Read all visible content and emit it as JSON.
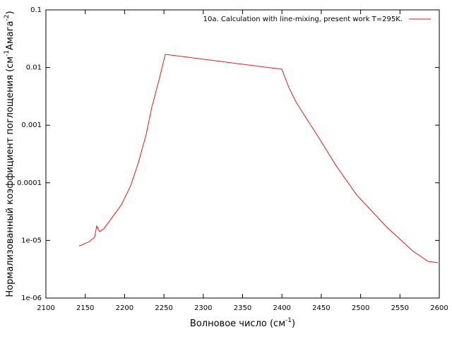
{
  "chart_data": {
    "type": "line",
    "xlabel": [
      "Волновое число (см",
      "-1",
      ")"
    ],
    "ylabel": [
      "Нормализованный коэффициент поглощения (см",
      "-1",
      "Амага",
      "-2",
      ")"
    ],
    "xlim": [
      2100,
      2600
    ],
    "xticks": [
      2100,
      2150,
      2200,
      2250,
      2300,
      2350,
      2400,
      2450,
      2500,
      2550,
      2600
    ],
    "ylim": [
      1e-06,
      0.1
    ],
    "ylog": true,
    "yticks": [
      {
        "value": 1e-06,
        "label": "1e-06"
      },
      {
        "value": 1e-05,
        "label": "1e-05"
      },
      0.0001,
      0.001,
      0.01,
      0.1
    ],
    "grid": false,
    "legend": "top-right",
    "series": [
      {
        "name": "10a. Calculation with line-mixing, present work T=295K.",
        "color": "#e41a1c",
        "x": [
          2142.2,
          2145.8,
          2149.4,
          2153.9,
          2161,
          2162,
          2164.6,
          2168.2,
          2173.6,
          2183.5,
          2196,
          2207.7,
          2217.6,
          2227.5,
          2234.6,
          2244.5,
          2251.7,
          2399.8,
          2408.8,
          2418.7,
          2447.4,
          2469,
          2495,
          2533.6,
          2565.9,
          2585.6,
          2598.2
        ],
        "values": [
          8.07e-06,
          8.3e-06,
          8.9e-06,
          9.3e-06,
          1.1e-05,
          1.15e-05,
          1.78e-05,
          1.42e-05,
          1.59e-05,
          2.43e-05,
          4.15e-05,
          8.89e-05,
          0.000225,
          0.000697,
          0.00204,
          0.00667,
          0.0169,
          0.00935,
          0.00449,
          0.00241,
          0.000589,
          0.000196,
          6.15e-05,
          1.68e-05,
          6.62e-06,
          4.34e-06,
          4.1e-06
        ]
      }
    ]
  }
}
